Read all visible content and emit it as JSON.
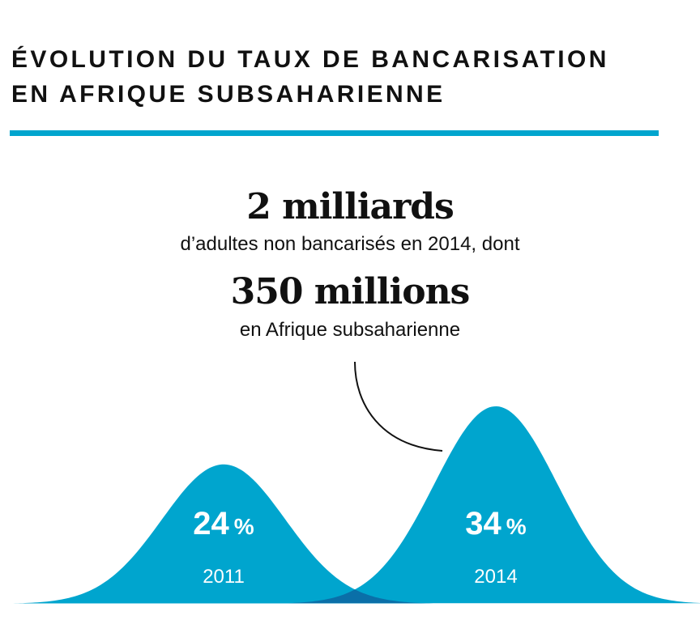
{
  "title": {
    "line1": "ÉVOLUTION DU TAUX DE BANCARISATION",
    "line2": "EN AFRIQUE SUBSAHARIENNE"
  },
  "stats": {
    "headline1": "2 milliards",
    "sub1": "d’adultes non bancarisés en 2014, dont",
    "headline2": "350 millions",
    "sub2": "en Afrique subsaharienne"
  },
  "colors": {
    "accent": "#00a5ce",
    "overlap": "#0a6fa8",
    "text": "#111111",
    "label": "#ffffff"
  },
  "chart_data": {
    "type": "area",
    "shape": "bell-curves",
    "title": "ÉVOLUTION DU TAUX DE BANCARISATION EN AFRIQUE SUBSAHARIENNE",
    "unit": "%",
    "categories": [
      "2011",
      "2014"
    ],
    "values": [
      24,
      34
    ],
    "value_labels": [
      "24",
      "34"
    ],
    "ylim": [
      0,
      34
    ],
    "grid": false,
    "legend": "none"
  }
}
